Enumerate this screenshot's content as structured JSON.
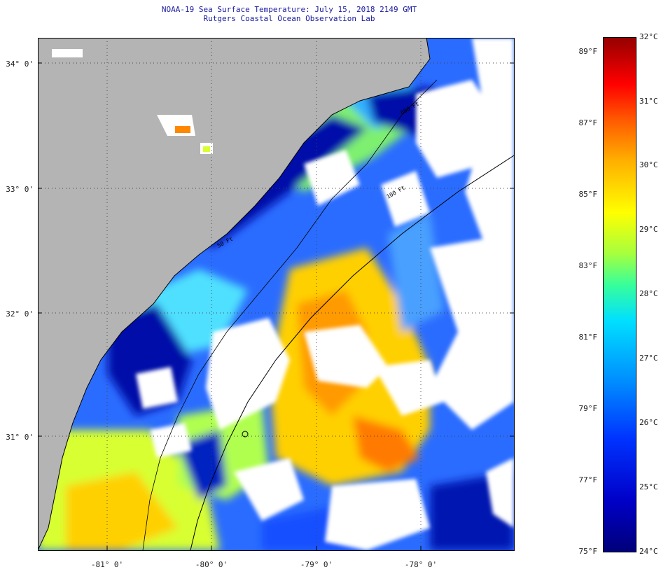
{
  "title": {
    "line1": "NOAA-19 Sea Surface Temperature:  July 15, 2018 2149 GMT",
    "line2": "Rutgers Coastal Ocean Observation Lab"
  },
  "latitude_labels": [
    "34° 0'",
    "33° 0'",
    "32° 0'",
    "31° 0'"
  ],
  "longitude_labels": [
    "-81° 0'",
    "-80° 0'",
    "-79° 0'",
    "-78° 0'"
  ],
  "colorbar": {
    "celsius_labels": [
      "32°C",
      "31°C",
      "30°C",
      "29°C",
      "28°C",
      "27°C",
      "26°C",
      "25°C",
      "24°C"
    ],
    "fahrenheit_labels": [
      "89°F",
      "87°F",
      "85°F",
      "83°F",
      "81°F",
      "79°F",
      "77°F",
      "75°F"
    ],
    "min_c": 24,
    "max_c": 32
  },
  "isobath_labels": [
    "50 Ft",
    "600 Ft",
    "100 Ft"
  ],
  "colors": {
    "land": "#b4b4b4",
    "cloud": "#ffffff",
    "title_text": "#1a1aa0"
  },
  "legend_icons": [
    "colorbar-legend-icon"
  ]
}
